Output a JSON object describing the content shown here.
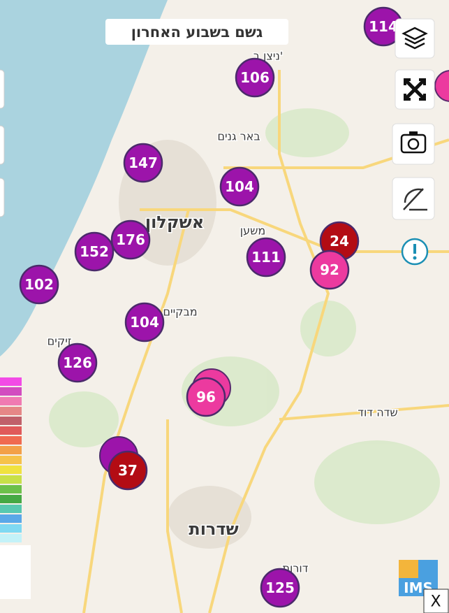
{
  "title": "גשם בשבוע האחרון",
  "places": [
    {
      "name": "ניצן ב'",
      "size": "small"
    },
    {
      "name": "באר גנים",
      "size": "small"
    },
    {
      "name": "אשקלון",
      "size": "large"
    },
    {
      "name": "משען",
      "size": "small"
    },
    {
      "name": "מבקיים",
      "size": "small"
    },
    {
      "name": "זיקים",
      "size": "small"
    },
    {
      "name": "שדה דוד",
      "size": "small"
    },
    {
      "name": "שדרות",
      "size": "large"
    },
    {
      "name": "דורות",
      "size": "small"
    }
  ],
  "stations": [
    {
      "value": 114,
      "color": "#9c14aa"
    },
    {
      "value": 106,
      "color": "#9c14aa"
    },
    {
      "value": 147,
      "color": "#9c14aa"
    },
    {
      "value": 104,
      "color": "#9c14aa"
    },
    {
      "value": 176,
      "color": "#9c14aa"
    },
    {
      "value": 152,
      "color": "#9c14aa"
    },
    {
      "value": 24,
      "color": "#b30c14"
    },
    {
      "value": 111,
      "color": "#9c14aa"
    },
    {
      "value": 92,
      "color": "#ec3a9f"
    },
    {
      "value": 102,
      "color": "#9c14aa"
    },
    {
      "value": 104,
      "color": "#9c14aa"
    },
    {
      "value": 126,
      "color": "#9c14aa"
    },
    {
      "value": 96,
      "color": "#ec3a9f"
    },
    {
      "value": 37,
      "color": "#b30c14"
    },
    {
      "value": 125,
      "color": "#9c14aa"
    }
  ],
  "logo": "IMS",
  "close": "X"
}
